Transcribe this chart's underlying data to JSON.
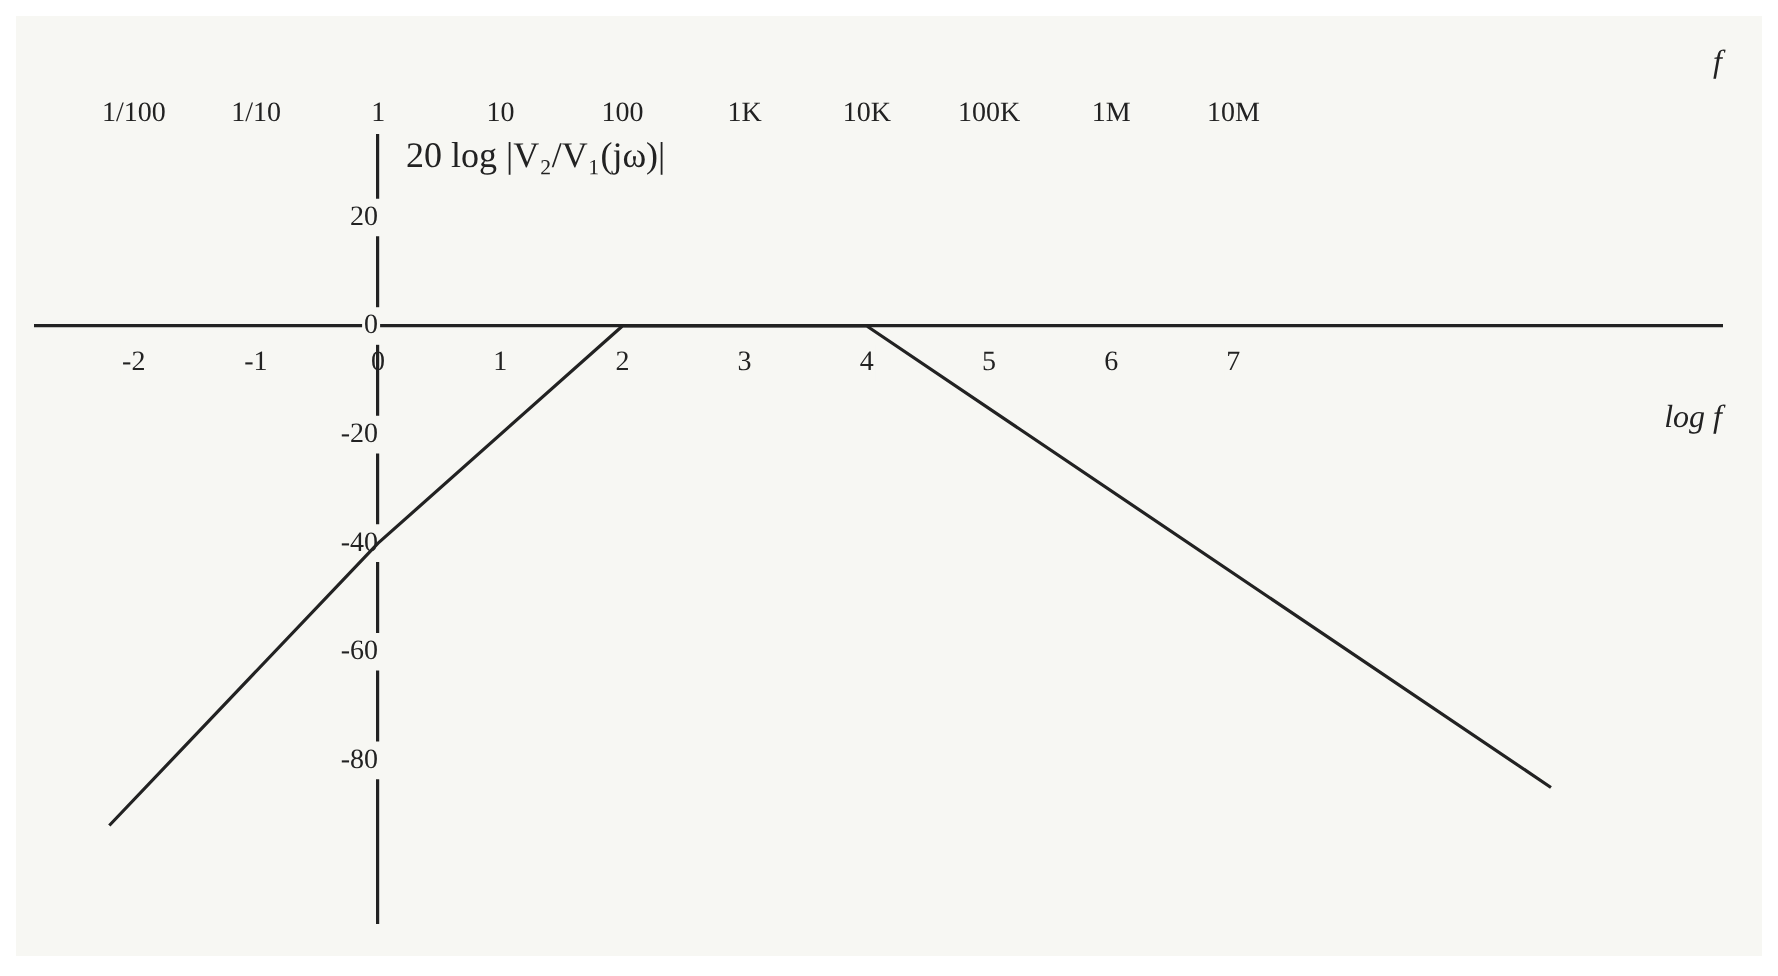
{
  "chart_data": {
    "type": "line",
    "ylabel": "20 log |V₂/V₁(jω)|",
    "xlabel": "log f",
    "x2label": "f",
    "x": [
      -2.2,
      0,
      2,
      4,
      9.6
    ],
    "series": [
      {
        "color": "#222222",
        "values": [
          -92,
          -40,
          0,
          0,
          -85
        ]
      }
    ],
    "xlim": [
      -2.8,
      11
    ],
    "xticks": [
      -2,
      -1,
      0,
      1,
      2,
      3,
      4,
      5,
      6,
      7
    ],
    "x2lim": [
      0.00158,
      100000000000
    ],
    "log": "x2",
    "x2ticks": [
      {
        "value": 0.01,
        "label": "1/100"
      },
      {
        "value": 0.1,
        "label": "1/10"
      },
      1,
      10,
      100,
      {
        "value": 1000,
        "label": "1K"
      },
      {
        "value": 10000,
        "label": "10K"
      },
      {
        "value": 100000,
        "label": "100K"
      },
      {
        "value": 1000000,
        "label": "1M"
      },
      {
        "value": 10000000,
        "label": "10M"
      }
    ],
    "ylim": [
      -110,
      35
    ],
    "yticks": [
      20,
      0,
      -20,
      -40,
      -60,
      -80
    ],
    "marker": "none",
    "line_style": "solid"
  }
}
